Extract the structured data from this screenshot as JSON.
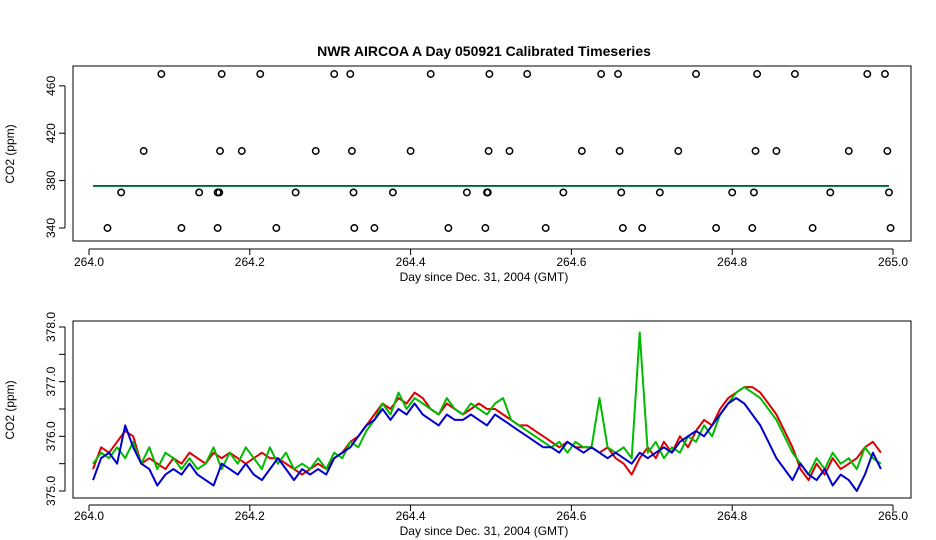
{
  "chart_data": [
    {
      "type": "scatter",
      "title": "NWR AIRCOA A  Day 050921  Calibrated Timeseries",
      "xlabel": "Day since Dec. 31, 2004 (GMT)",
      "ylabel": "CO2 (ppm)",
      "xlim": [
        264.0,
        265.0
      ],
      "ylim": [
        335,
        475
      ],
      "xticks": [
        264.0,
        264.2,
        264.4,
        264.6,
        264.8,
        265.0
      ],
      "xtick_labels": [
        "264.0",
        "264.2",
        "264.4",
        "264.6",
        "264.8",
        "265.0"
      ],
      "yticks": [
        340,
        380,
        420,
        460
      ],
      "ytick_labels": [
        "340",
        "380",
        "420",
        "460"
      ],
      "calibration_points": [
        {
          "x": 264.023,
          "y": 340
        },
        {
          "x": 264.04,
          "y": 370
        },
        {
          "x": 264.068,
          "y": 405
        },
        {
          "x": 264.09,
          "y": 470
        },
        {
          "x": 264.115,
          "y": 340
        },
        {
          "x": 264.137,
          "y": 370
        },
        {
          "x": 264.16,
          "y": 340
        },
        {
          "x": 264.16,
          "y": 370
        },
        {
          "x": 264.162,
          "y": 370
        },
        {
          "x": 264.163,
          "y": 405
        },
        {
          "x": 264.165,
          "y": 470
        },
        {
          "x": 264.19,
          "y": 405
        },
        {
          "x": 264.213,
          "y": 470
        },
        {
          "x": 264.233,
          "y": 340
        },
        {
          "x": 264.257,
          "y": 370
        },
        {
          "x": 264.282,
          "y": 405
        },
        {
          "x": 264.305,
          "y": 470
        },
        {
          "x": 264.325,
          "y": 470
        },
        {
          "x": 264.327,
          "y": 405
        },
        {
          "x": 264.329,
          "y": 370
        },
        {
          "x": 264.33,
          "y": 340
        },
        {
          "x": 264.355,
          "y": 340
        },
        {
          "x": 264.378,
          "y": 370
        },
        {
          "x": 264.4,
          "y": 405
        },
        {
          "x": 264.425,
          "y": 470
        },
        {
          "x": 264.447,
          "y": 340
        },
        {
          "x": 264.47,
          "y": 370
        },
        {
          "x": 264.493,
          "y": 340
        },
        {
          "x": 264.495,
          "y": 370
        },
        {
          "x": 264.496,
          "y": 370
        },
        {
          "x": 264.497,
          "y": 405
        },
        {
          "x": 264.498,
          "y": 470
        },
        {
          "x": 264.523,
          "y": 405
        },
        {
          "x": 264.545,
          "y": 470
        },
        {
          "x": 264.568,
          "y": 340
        },
        {
          "x": 264.59,
          "y": 370
        },
        {
          "x": 264.613,
          "y": 405
        },
        {
          "x": 264.637,
          "y": 470
        },
        {
          "x": 264.658,
          "y": 470
        },
        {
          "x": 264.66,
          "y": 405
        },
        {
          "x": 264.662,
          "y": 370
        },
        {
          "x": 264.664,
          "y": 340
        },
        {
          "x": 264.688,
          "y": 340
        },
        {
          "x": 264.71,
          "y": 370
        },
        {
          "x": 264.733,
          "y": 405
        },
        {
          "x": 264.755,
          "y": 470
        },
        {
          "x": 264.78,
          "y": 340
        },
        {
          "x": 264.8,
          "y": 370
        },
        {
          "x": 264.825,
          "y": 340
        },
        {
          "x": 264.827,
          "y": 370
        },
        {
          "x": 264.829,
          "y": 405
        },
        {
          "x": 264.831,
          "y": 470
        },
        {
          "x": 264.855,
          "y": 405
        },
        {
          "x": 264.878,
          "y": 470
        },
        {
          "x": 264.9,
          "y": 340
        },
        {
          "x": 264.922,
          "y": 370
        },
        {
          "x": 264.945,
          "y": 405
        },
        {
          "x": 264.968,
          "y": 470
        },
        {
          "x": 264.99,
          "y": 470
        },
        {
          "x": 264.993,
          "y": 405
        },
        {
          "x": 264.995,
          "y": 370
        },
        {
          "x": 264.997,
          "y": 340
        }
      ],
      "ambient_line_level": 375.5
    },
    {
      "type": "line",
      "xlabel": "Day since Dec. 31, 2004 (GMT)",
      "ylabel": "CO2 (ppm)",
      "xlim": [
        264.0,
        265.0
      ],
      "ylim": [
        374.9,
        378.1
      ],
      "xticks": [
        264.0,
        264.2,
        264.4,
        264.6,
        264.8,
        265.0
      ],
      "xtick_labels": [
        "264.0",
        "264.2",
        "264.4",
        "264.6",
        "264.8",
        "265.0"
      ],
      "yticks": [
        375.0,
        375.5,
        376.0,
        376.5,
        377.0,
        377.5,
        378.0
      ],
      "ytick_labels": [
        "375.0",
        "376.0",
        "377.0",
        "378.0"
      ],
      "series": [
        {
          "name": "red",
          "color": "#dd0000",
          "x": [
            264.005,
            264.015,
            264.025,
            264.035,
            264.045,
            264.055,
            264.065,
            264.075,
            264.085,
            264.095,
            264.105,
            264.115,
            264.125,
            264.135,
            264.145,
            264.155,
            264.165,
            264.175,
            264.185,
            264.195,
            264.205,
            264.215,
            264.225,
            264.235,
            264.245,
            264.255,
            264.265,
            264.275,
            264.285,
            264.295,
            264.305,
            264.315,
            264.325,
            264.335,
            264.345,
            264.355,
            264.365,
            264.375,
            264.385,
            264.395,
            264.405,
            264.415,
            264.425,
            264.435,
            264.445,
            264.455,
            264.465,
            264.475,
            264.485,
            264.495,
            264.505,
            264.515,
            264.525,
            264.535,
            264.545,
            264.555,
            264.565,
            264.575,
            264.585,
            264.595,
            264.605,
            264.615,
            264.625,
            264.635,
            264.645,
            264.655,
            264.665,
            264.675,
            264.685,
            264.695,
            264.705,
            264.715,
            264.725,
            264.735,
            264.745,
            264.755,
            264.765,
            264.775,
            264.785,
            264.795,
            264.805,
            264.815,
            264.825,
            264.835,
            264.845,
            264.855,
            264.865,
            264.875,
            264.885,
            264.895,
            264.905,
            264.915,
            264.925,
            264.935,
            264.945,
            264.955,
            264.965,
            264.975,
            264.985
          ],
          "y": [
            375.4,
            375.8,
            375.7,
            375.9,
            376.1,
            376.0,
            375.5,
            375.6,
            375.5,
            375.4,
            375.6,
            375.5,
            375.7,
            375.6,
            375.5,
            375.7,
            375.6,
            375.7,
            375.6,
            375.5,
            375.6,
            375.7,
            375.6,
            375.6,
            375.5,
            375.4,
            375.3,
            375.4,
            375.5,
            375.4,
            375.6,
            375.7,
            375.9,
            376.0,
            376.2,
            376.4,
            376.6,
            376.5,
            376.7,
            376.6,
            376.8,
            376.7,
            376.5,
            376.4,
            376.6,
            376.5,
            376.4,
            376.5,
            376.6,
            376.5,
            376.5,
            376.4,
            376.3,
            376.2,
            376.2,
            376.1,
            376.0,
            375.9,
            375.8,
            375.9,
            375.8,
            375.8,
            375.8,
            375.7,
            375.8,
            375.6,
            375.5,
            375.3,
            375.6,
            375.8,
            375.6,
            375.9,
            375.7,
            376.0,
            375.8,
            376.1,
            376.3,
            376.2,
            376.5,
            376.7,
            376.8,
            376.9,
            376.9,
            376.8,
            376.6,
            376.4,
            376.1,
            375.8,
            375.4,
            375.2,
            375.5,
            375.3,
            375.6,
            375.4,
            375.5,
            375.6,
            375.8,
            375.9,
            375.7
          ]
        },
        {
          "name": "green",
          "color": "#00bb00",
          "x": [
            264.005,
            264.015,
            264.025,
            264.035,
            264.045,
            264.055,
            264.065,
            264.075,
            264.085,
            264.095,
            264.105,
            264.115,
            264.125,
            264.135,
            264.145,
            264.155,
            264.165,
            264.175,
            264.185,
            264.195,
            264.205,
            264.215,
            264.225,
            264.235,
            264.245,
            264.255,
            264.265,
            264.275,
            264.285,
            264.295,
            264.305,
            264.315,
            264.325,
            264.335,
            264.345,
            264.355,
            264.365,
            264.375,
            264.385,
            264.395,
            264.405,
            264.415,
            264.425,
            264.435,
            264.445,
            264.455,
            264.465,
            264.475,
            264.485,
            264.495,
            264.505,
            264.515,
            264.525,
            264.535,
            264.545,
            264.555,
            264.565,
            264.575,
            264.585,
            264.595,
            264.605,
            264.615,
            264.625,
            264.635,
            264.645,
            264.655,
            264.665,
            264.675,
            264.685,
            264.695,
            264.705,
            264.715,
            264.725,
            264.735,
            264.745,
            264.755,
            264.765,
            264.775,
            264.785,
            264.795,
            264.805,
            264.815,
            264.825,
            264.835,
            264.845,
            264.855,
            264.865,
            264.875,
            264.885,
            264.895,
            264.905,
            264.915,
            264.925,
            264.935,
            264.945,
            264.955,
            264.965,
            264.975,
            264.985
          ],
          "y": [
            375.5,
            375.7,
            375.6,
            375.8,
            375.6,
            375.9,
            375.5,
            375.8,
            375.4,
            375.7,
            375.6,
            375.4,
            375.6,
            375.4,
            375.5,
            375.8,
            375.4,
            375.7,
            375.5,
            375.8,
            375.6,
            375.4,
            375.8,
            375.5,
            375.7,
            375.4,
            375.5,
            375.4,
            375.6,
            375.4,
            375.7,
            375.6,
            375.9,
            375.8,
            376.1,
            376.3,
            376.6,
            376.4,
            376.8,
            376.5,
            376.7,
            376.6,
            376.5,
            376.4,
            376.7,
            376.5,
            376.4,
            376.6,
            376.5,
            376.4,
            376.6,
            376.7,
            376.3,
            376.2,
            376.1,
            376.0,
            375.9,
            375.8,
            375.9,
            375.7,
            375.9,
            375.8,
            375.8,
            376.7,
            375.8,
            375.7,
            375.8,
            375.6,
            377.9,
            375.7,
            375.9,
            375.6,
            375.8,
            375.7,
            376.0,
            375.9,
            376.2,
            376.0,
            376.4,
            376.6,
            376.8,
            376.9,
            376.8,
            376.7,
            376.5,
            376.3,
            376.0,
            375.7,
            375.5,
            375.3,
            375.6,
            375.4,
            375.7,
            375.5,
            375.6,
            375.4,
            375.8,
            375.6,
            375.5
          ]
        },
        {
          "name": "blue",
          "color": "#0000cc",
          "x": [
            264.005,
            264.015,
            264.025,
            264.035,
            264.045,
            264.055,
            264.065,
            264.075,
            264.085,
            264.095,
            264.105,
            264.115,
            264.125,
            264.135,
            264.145,
            264.155,
            264.165,
            264.175,
            264.185,
            264.195,
            264.205,
            264.215,
            264.225,
            264.235,
            264.245,
            264.255,
            264.265,
            264.275,
            264.285,
            264.295,
            264.305,
            264.315,
            264.325,
            264.335,
            264.345,
            264.355,
            264.365,
            264.375,
            264.385,
            264.395,
            264.405,
            264.415,
            264.425,
            264.435,
            264.445,
            264.455,
            264.465,
            264.475,
            264.485,
            264.495,
            264.505,
            264.515,
            264.525,
            264.535,
            264.545,
            264.555,
            264.565,
            264.575,
            264.585,
            264.595,
            264.605,
            264.615,
            264.625,
            264.635,
            264.645,
            264.655,
            264.665,
            264.675,
            264.685,
            264.695,
            264.705,
            264.715,
            264.725,
            264.735,
            264.745,
            264.755,
            264.765,
            264.775,
            264.785,
            264.795,
            264.805,
            264.815,
            264.825,
            264.835,
            264.845,
            264.855,
            264.865,
            264.875,
            264.885,
            264.895,
            264.905,
            264.915,
            264.925,
            264.935,
            264.945,
            264.955,
            264.965,
            264.975,
            264.985
          ],
          "y": [
            375.2,
            375.6,
            375.7,
            375.5,
            376.2,
            375.8,
            375.5,
            375.4,
            375.1,
            375.3,
            375.4,
            375.3,
            375.5,
            375.3,
            375.2,
            375.1,
            375.5,
            375.4,
            375.3,
            375.5,
            375.3,
            375.2,
            375.4,
            375.6,
            375.4,
            375.2,
            375.4,
            375.3,
            375.4,
            375.3,
            375.6,
            375.7,
            375.8,
            376.0,
            376.2,
            376.3,
            376.5,
            376.3,
            376.5,
            376.4,
            376.6,
            376.4,
            376.3,
            376.2,
            376.4,
            376.3,
            376.3,
            376.4,
            376.3,
            376.2,
            376.4,
            376.3,
            376.2,
            376.1,
            376.0,
            375.9,
            375.8,
            375.8,
            375.7,
            375.9,
            375.8,
            375.7,
            375.8,
            375.7,
            375.6,
            375.7,
            375.6,
            375.5,
            375.7,
            375.6,
            375.7,
            375.8,
            375.7,
            375.9,
            376.0,
            376.1,
            376.0,
            376.2,
            376.4,
            376.6,
            376.7,
            376.6,
            376.4,
            376.2,
            375.9,
            375.6,
            375.4,
            375.2,
            375.5,
            375.3,
            375.2,
            375.4,
            375.1,
            375.3,
            375.2,
            375.0,
            375.3,
            375.7,
            375.4
          ]
        }
      ]
    }
  ]
}
